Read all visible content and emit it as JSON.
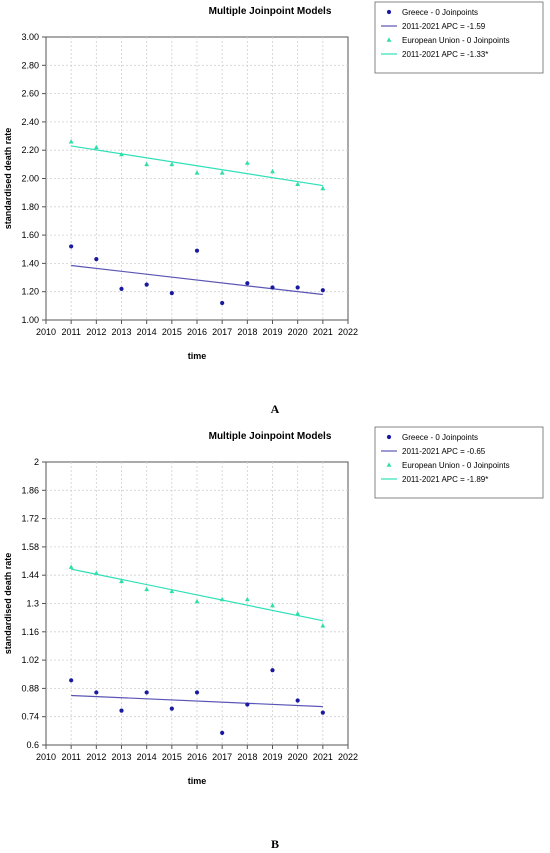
{
  "chart_data": [
    {
      "type": "scatter",
      "title": "Multiple Joinpoint Models",
      "xlabel": "time",
      "ylabel": "standardised death rate",
      "xlim": [
        2010,
        2022
      ],
      "ylim": [
        1.0,
        3.0
      ],
      "x_ticks": [
        "2010",
        "2011",
        "2012",
        "2013",
        "2014",
        "2015",
        "2016",
        "2017",
        "2018",
        "2019",
        "2020",
        "2021",
        "2022"
      ],
      "y_ticks": [
        "1.00",
        "1.20",
        "1.40",
        "1.60",
        "1.80",
        "2.00",
        "2.20",
        "2.40",
        "2.60",
        "2.80",
        "3.00"
      ],
      "grid": true,
      "legend_position": "right",
      "panel_label": "A",
      "series": [
        {
          "name": "Greece - 0 Joinpoints",
          "color": "#1a1aa0",
          "marker": "circle",
          "x": [
            2011,
            2012,
            2013,
            2014,
            2015,
            2016,
            2017,
            2018,
            2019,
            2020,
            2021
          ],
          "y": [
            1.52,
            1.43,
            1.22,
            1.25,
            1.19,
            1.49,
            1.12,
            1.26,
            1.23,
            1.23,
            1.21
          ],
          "fit_label": "2011-2021 APC  =  -1.59",
          "fit_color": "#5a55b5",
          "fit": [
            [
              2011,
              1.385
            ],
            [
              2021,
              1.18
            ]
          ]
        },
        {
          "name": "European Union - 0 Joinpoints",
          "color": "#2ee0a8",
          "marker": "triangle",
          "x": [
            2011,
            2012,
            2013,
            2014,
            2015,
            2016,
            2017,
            2018,
            2019,
            2020,
            2021
          ],
          "y": [
            2.26,
            2.22,
            2.17,
            2.1,
            2.1,
            2.04,
            2.04,
            2.11,
            2.05,
            1.96,
            1.93
          ],
          "fit_label": "2011-2021 APC  =  -1.33*",
          "fit_color": "#2ee0b8",
          "fit": [
            [
              2011,
              2.23
            ],
            [
              2021,
              1.95
            ]
          ]
        }
      ]
    },
    {
      "type": "scatter",
      "title": "Multiple Joinpoint Models",
      "xlabel": "time",
      "ylabel": "standardised death rate",
      "xlim": [
        2010,
        2022
      ],
      "ylim": [
        0.6,
        2.0
      ],
      "x_ticks": [
        "2010",
        "2011",
        "2012",
        "2013",
        "2014",
        "2015",
        "2016",
        "2017",
        "2018",
        "2019",
        "2020",
        "2021",
        "2022"
      ],
      "y_ticks": [
        "0.6",
        "0.74",
        "0.88",
        "1.02",
        "1.16",
        "1.3",
        "1.44",
        "1.58",
        "1.72",
        "1.86",
        "2"
      ],
      "grid": true,
      "legend_position": "right",
      "panel_label": "B",
      "series": [
        {
          "name": "Greece - 0 Joinpoints",
          "color": "#1a1aa0",
          "marker": "circle",
          "x": [
            2011,
            2012,
            2013,
            2014,
            2015,
            2016,
            2017,
            2018,
            2019,
            2020,
            2021
          ],
          "y": [
            0.92,
            0.86,
            0.77,
            0.86,
            0.78,
            0.86,
            0.66,
            0.8,
            0.97,
            0.82,
            0.76
          ],
          "fit_label": "2011-2021 APC  =  -0.65",
          "fit_color": "#5a55b5",
          "fit": [
            [
              2011,
              0.845
            ],
            [
              2021,
              0.79
            ]
          ]
        },
        {
          "name": "European Union - 0 Joinpoints",
          "color": "#2ee0a8",
          "marker": "triangle",
          "x": [
            2011,
            2012,
            2013,
            2014,
            2015,
            2016,
            2017,
            2018,
            2019,
            2020,
            2021
          ],
          "y": [
            1.48,
            1.45,
            1.41,
            1.37,
            1.36,
            1.31,
            1.32,
            1.32,
            1.29,
            1.25,
            1.19
          ],
          "fit_label": "2011-2021 APC  =  -1.89*",
          "fit_color": "#2ee0b8",
          "fit": [
            [
              2011,
              1.47
            ],
            [
              2021,
              1.215
            ]
          ]
        }
      ]
    }
  ]
}
